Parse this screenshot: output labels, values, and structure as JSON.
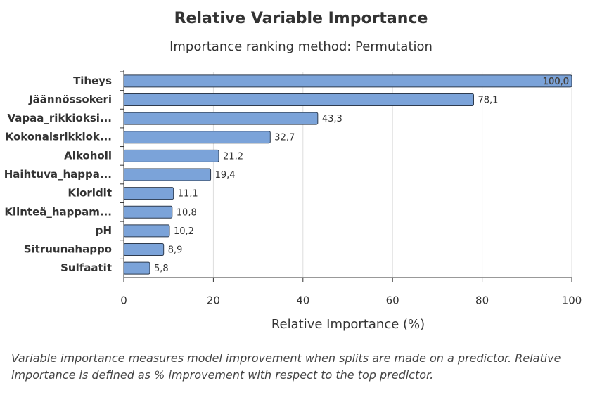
{
  "chart_data": {
    "type": "bar",
    "orientation": "horizontal",
    "title": "Relative Variable Importance",
    "subtitle": "Importance ranking method: Permutation",
    "x_label": "Relative Importance (%)",
    "categories": [
      "Tiheys",
      "Jäännössokeri",
      "Vapaa_rikkioksi...",
      "Kokonaisrikkiok...",
      "Alkoholi",
      "Haihtuva_happa...",
      "Kloridit",
      "Kiinteä_happam...",
      "pH",
      "Sitruunahappo",
      "Sulfaatit"
    ],
    "values": [
      100.0,
      78.1,
      43.3,
      32.7,
      21.2,
      19.4,
      11.1,
      10.8,
      10.2,
      8.9,
      5.8
    ],
    "value_labels": [
      "100,0",
      "78,1",
      "43,3",
      "32,7",
      "21,2",
      "19,4",
      "11,1",
      "10,8",
      "10,2",
      "8,9",
      "5,8"
    ],
    "color": "#7ba3d9",
    "xlim": [
      0,
      100
    ],
    "xticks": [
      0,
      20,
      40,
      60,
      80,
      100
    ],
    "grid": true,
    "footnote": "Variable importance measures model improvement when splits are made on a predictor. Relative importance is defined as % improvement with respect to the top predictor."
  }
}
